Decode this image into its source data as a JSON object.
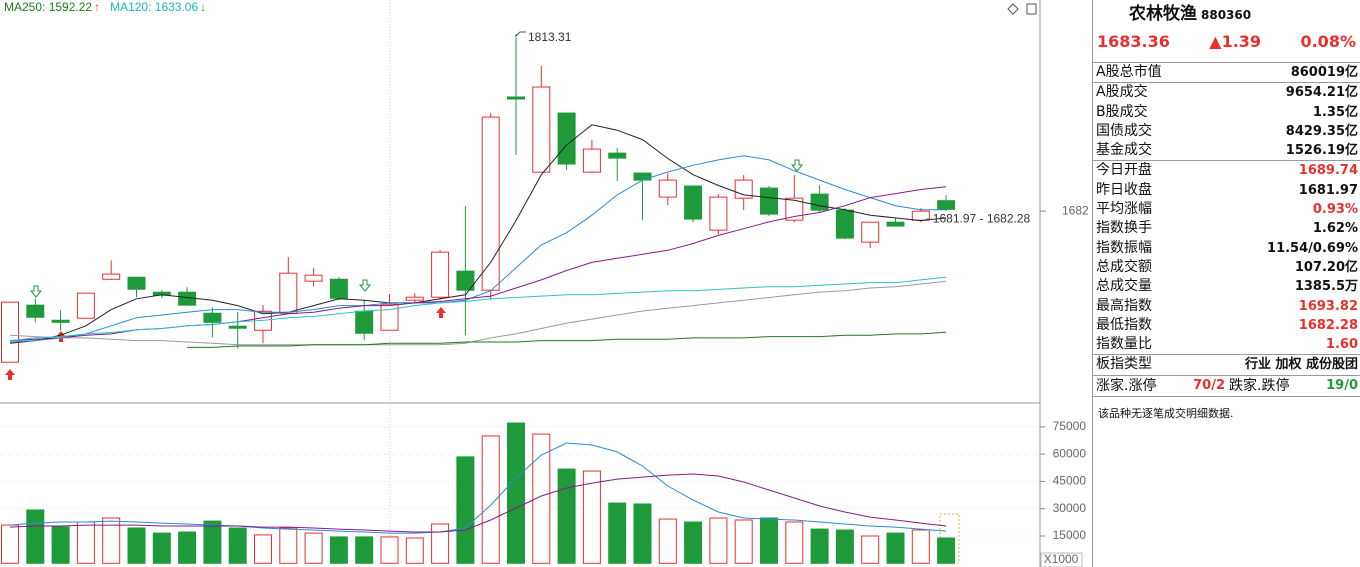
{
  "chart_data": [
    {
      "type": "candlestick",
      "legend": [
        {
          "label": "MA250: 1592.22",
          "trend": "↑",
          "color": "#1e7a1e",
          "trend_color": "#e8312f"
        },
        {
          "label": "MA120: 1633.06",
          "trend": "↓",
          "color": "#19b5c3",
          "trend_color": "#1f9a3a"
        }
      ],
      "open": [
        1570.0,
        1612.3,
        1601.1,
        1602.6,
        1631.5,
        1633.0,
        1621.9,
        1621.9,
        1606.3,
        1596.7,
        1593.7,
        1606.3,
        1630.1,
        1631.5,
        1607.8,
        1593.7,
        1616.0,
        1618.2,
        1637.5,
        1623.4,
        1766.6,
        1710.9,
        1754.7,
        1710.9,
        1725.0,
        1710.2,
        1692.4,
        1700.6,
        1667.9,
        1691.6,
        1699.1,
        1675.3,
        1694.6,
        1682.7,
        1659.0,
        1673.8,
        1675.3,
        1689.74
      ],
      "high": [
        1614.5,
        1617.4,
        1608.5,
        1621.2,
        1645.6,
        1633.0,
        1623.4,
        1625.6,
        1610.8,
        1607.1,
        1612.3,
        1647.9,
        1639.7,
        1633.0,
        1616.0,
        1620.4,
        1621.2,
        1653.1,
        1685.7,
        1754.7,
        1813.31,
        1789.6,
        1754.7,
        1734.7,
        1728.7,
        1710.2,
        1710.2,
        1700.6,
        1694.6,
        1708.7,
        1700.6,
        1708.7,
        1701.3,
        1684.2,
        1673.8,
        1676.8,
        1684.2,
        1693.82
      ],
      "low": [
        1570.0,
        1599.6,
        1593.7,
        1602.6,
        1630.8,
        1618.2,
        1617.4,
        1612.3,
        1588.5,
        1580.3,
        1584.1,
        1606.3,
        1626.3,
        1616.0,
        1586.3,
        1593.7,
        1613.7,
        1616.0,
        1590.0,
        1616.0,
        1723.6,
        1710.9,
        1712.4,
        1710.2,
        1704.3,
        1675.3,
        1686.5,
        1673.8,
        1664.9,
        1682.7,
        1678.3,
        1673.8,
        1681.3,
        1661.2,
        1654.5,
        1670.9,
        1673.8,
        1682.28
      ],
      "close": [
        1614.5,
        1603.3,
        1599.6,
        1621.2,
        1635.3,
        1624.1,
        1619.7,
        1612.3,
        1599.6,
        1595.2,
        1607.8,
        1636.0,
        1634.5,
        1617.4,
        1591.5,
        1613.0,
        1618.2,
        1651.6,
        1623.4,
        1751.7,
        1765.1,
        1774.0,
        1716.9,
        1728.0,
        1721.3,
        1705.0,
        1705.0,
        1676.1,
        1692.4,
        1705.0,
        1679.8,
        1691.6,
        1682.7,
        1662.0,
        1673.8,
        1670.9,
        1681.97,
        1683.36
      ],
      "up_color": "#e8312f",
      "down_color": "#1f9a3a",
      "series": [
        {
          "color": "#222222",
          "values": [
            1584,
            1586,
            1590,
            1597,
            1609,
            1617,
            1620,
            1618,
            1616,
            1612,
            1606,
            1607,
            1612,
            1617,
            1616,
            1614,
            1614,
            1617,
            1620,
            1644,
            1675,
            1709,
            1731,
            1746,
            1742,
            1735,
            1721,
            1709,
            1701,
            1694,
            1692,
            1690,
            1686,
            1683,
            1679,
            1677,
            1675,
            1677
          ]
        },
        {
          "color": "#2a8ad8",
          "values": [
            1585,
            1586,
            1588,
            1591,
            1597,
            1603,
            1605,
            1607,
            1609,
            1609,
            1607,
            1607,
            1609,
            1612,
            1612,
            1614,
            1614,
            1614,
            1616,
            1623,
            1640,
            1657,
            1666,
            1679,
            1694,
            1705,
            1711,
            1716,
            1720,
            1723,
            1720,
            1712,
            1705,
            1698,
            1692,
            1686,
            1683,
            1683
          ]
        },
        {
          "color": "#8a1a8a",
          "values": [
            1586,
            1587,
            1588,
            1590,
            1591,
            1594,
            1595,
            1597,
            1598,
            1600,
            1603,
            1606,
            1607,
            1610,
            1612,
            1612,
            1614,
            1615,
            1617,
            1619,
            1625,
            1631,
            1638,
            1644,
            1647,
            1650,
            1653,
            1658,
            1664,
            1669,
            1674,
            1678,
            1681,
            1686,
            1692,
            1695,
            1698,
            1700
          ]
        },
        {
          "color": "#9a9a9a",
          "values": [
            1590,
            1589,
            1588,
            1588,
            1587,
            1586,
            1586,
            1585,
            1584,
            1583,
            1583,
            1583,
            1583,
            1583,
            1583,
            1583,
            1583,
            1583,
            1584,
            1588,
            1591,
            1595,
            1599,
            1602,
            1605,
            1608,
            1610,
            1612,
            1614,
            1616,
            1618,
            1620,
            1622,
            1623,
            1625,
            1626,
            1628,
            1630
          ]
        },
        {
          "color": "#2cc0cc",
          "values": [
            1586,
            1588,
            1589,
            1591,
            1592,
            1594,
            1595,
            1597,
            1598,
            1600,
            1601,
            1603,
            1604,
            1606,
            1608,
            1609,
            1612,
            1614,
            1615,
            1617,
            1618,
            1619,
            1620,
            1620,
            1621,
            1622,
            1623,
            1623,
            1624,
            1625,
            1626,
            1626,
            1627,
            1628,
            1629,
            1629,
            1631,
            1633.06
          ]
        },
        {
          "color": "#1e7a1e",
          "values": [
            null,
            null,
            null,
            null,
            null,
            null,
            null,
            1581,
            1581,
            1582,
            1582,
            1582,
            1583,
            1583,
            1583,
            1584,
            1584,
            1584,
            1585,
            1585,
            1585,
            1586,
            1586,
            1586,
            1587,
            1587,
            1587,
            1588,
            1588,
            1588,
            1589,
            1589,
            1589,
            1590,
            1590,
            1591,
            1591,
            1592.22
          ]
        }
      ],
      "ylim": [
        1542,
        1838.5
      ],
      "yticks": [
        1682
      ],
      "annotations": [
        {
          "value": 1813.31,
          "label": "1813.31"
        }
      ],
      "range_label": "1681.97 - 1682.28"
    },
    {
      "type": "bar",
      "values": [
        21000,
        29300,
        20000,
        22700,
        24900,
        19400,
        16600,
        17200,
        23200,
        19400,
        15600,
        19400,
        16600,
        14500,
        14500,
        14500,
        13900,
        21600,
        58500,
        70000,
        77100,
        71000,
        51800,
        50700,
        33100,
        32600,
        24300,
        22700,
        24900,
        23800,
        24900,
        22700,
        18800,
        18300,
        15000,
        16600,
        18300,
        13900
      ],
      "series": [
        {
          "color": "#2a8ad8",
          "values": [
            21000,
            22100,
            22700,
            22700,
            23200,
            22700,
            22100,
            21600,
            21000,
            20500,
            19400,
            18800,
            18300,
            17700,
            17200,
            16600,
            16600,
            17200,
            19400,
            32000,
            46900,
            59500,
            66100,
            65000,
            61200,
            53500,
            42500,
            34800,
            28200,
            24900,
            24300,
            23800,
            22700,
            21600,
            20500,
            19900,
            18800,
            17700
          ]
        },
        {
          "color": "#8a1a8a",
          "values": [
            19900,
            20500,
            20500,
            21000,
            21000,
            21000,
            20500,
            20500,
            20500,
            20500,
            19900,
            19900,
            19400,
            18800,
            18300,
            17700,
            17200,
            17200,
            18300,
            23800,
            30400,
            37000,
            41400,
            44100,
            46300,
            47400,
            48500,
            49100,
            48000,
            44700,
            40300,
            35900,
            31500,
            28200,
            25400,
            23800,
            22100,
            20500
          ]
        }
      ],
      "ylim": [
        0,
        87000
      ],
      "yticks": [
        15000,
        30000,
        45000,
        60000,
        75000
      ],
      "unit_label": "X1000",
      "grid": true
    }
  ],
  "info_panel": {
    "name": "农林牧渔",
    "code": "880360",
    "price": "1683.36",
    "change": "▲1.39",
    "change_pct": "0.08%",
    "quote_color": "#e8312f",
    "groups": [
      [
        {
          "label": "A股总市值",
          "value": "860019亿"
        }
      ],
      [
        {
          "label": "A股成交",
          "value": "9654.21亿"
        },
        {
          "label": "B股成交",
          "value": "1.35亿"
        },
        {
          "label": "国债成交",
          "value": "8429.35亿"
        },
        {
          "label": "基金成交",
          "value": "1526.19亿"
        }
      ],
      [
        {
          "label": "今日开盘",
          "value": "1689.74",
          "color": "#e8312f"
        },
        {
          "label": "昨日收盘",
          "value": "1681.97"
        },
        {
          "label": "平均涨幅",
          "value": "0.93%",
          "color": "#e8312f"
        },
        {
          "label": "指数换手",
          "value": "1.62%"
        },
        {
          "label": "指数振幅",
          "value": "11.54/0.69%"
        },
        {
          "label": "总成交额",
          "value": "107.20亿"
        },
        {
          "label": "总成交量",
          "value": "1385.5万"
        },
        {
          "label": "最高指数",
          "value": "1693.82",
          "color": "#e8312f"
        },
        {
          "label": "最低指数",
          "value": "1682.28",
          "color": "#e8312f"
        },
        {
          "label": "指数量比",
          "value": "1.60",
          "color": "#e8312f"
        }
      ],
      [
        {
          "label": "板指类型",
          "value": "行业 加权 成份股团"
        }
      ]
    ],
    "breadth": {
      "up_label": "涨家.涨停",
      "up_value": "70/2",
      "up_color": "#e8312f",
      "down_label": "跌家.跌停",
      "down_value": "19/0",
      "down_color": "#1f9a3a"
    },
    "note": "该品种无逐笔成交明细数据."
  }
}
